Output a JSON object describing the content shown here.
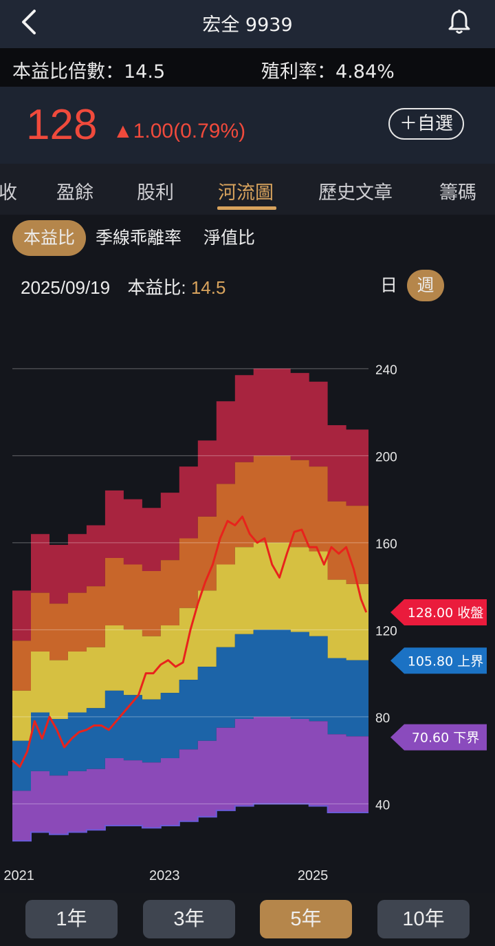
{
  "header": {
    "title": "宏全 9939"
  },
  "info": {
    "pe_label": "本益比倍數：14.5",
    "yield_label": "殖利率：4.84%"
  },
  "quote": {
    "price": "128",
    "change": "▲1.00(0.79%)",
    "watch_label": "＋自選"
  },
  "tabs": [
    "收",
    "盈餘",
    "股利",
    "河流圖",
    "歷史文章",
    "籌碼"
  ],
  "active_tab": "河流圖",
  "metric_tabs": [
    "本益比",
    "季線乖離率",
    "淨值比"
  ],
  "active_metric": "本益比",
  "detail": {
    "date": "2025/09/19",
    "label": "本益比:",
    "value": "14.5"
  },
  "period": {
    "day": "日",
    "week": "週",
    "active": "週"
  },
  "range_buttons": [
    "1年",
    "3年",
    "5年",
    "10年"
  ],
  "active_range": "5年",
  "colors": {
    "accent": "#b5864b",
    "price_red": "#f04a3c",
    "band1": "#8b4ab8",
    "band2": "#1c64a8",
    "band3": "#d6c041",
    "band4": "#c8662a",
    "band5": "#a8243f"
  },
  "chart_data": {
    "type": "area",
    "title": "",
    "yticks": [
      240,
      200,
      160,
      120,
      80,
      40
    ],
    "ylim": [
      30,
      245
    ],
    "xlim": [
      2020.95,
      2025.75
    ],
    "xticks": [
      {
        "x": 2021,
        "label": "2021"
      },
      {
        "x": 2023,
        "label": "2023"
      },
      {
        "x": 2025,
        "label": "2025"
      }
    ],
    "quarters": [
      2020.95,
      2021.2,
      2021.45,
      2021.7,
      2021.95,
      2022.2,
      2022.45,
      2022.7,
      2022.95,
      2023.2,
      2023.45,
      2023.7,
      2023.95,
      2024.2,
      2024.45,
      2024.7,
      2024.95,
      2025.2,
      2025.45,
      2025.75
    ],
    "bands": [
      {
        "name": "band1",
        "color": "#8b4ab8",
        "values": [
          23,
          27,
          26,
          27,
          28,
          30,
          30,
          29,
          30,
          32,
          34,
          37,
          39,
          40,
          40,
          40,
          39,
          36,
          36,
          36
        ]
      },
      {
        "name": "band2",
        "color": "#1c64a8",
        "values": [
          46,
          55,
          53,
          55,
          56,
          61,
          60,
          59,
          61,
          65,
          69,
          75,
          79,
          80,
          80,
          79,
          78,
          72,
          71,
          71
        ]
      },
      {
        "name": "band3",
        "color": "#d6c041",
        "values": [
          69,
          82,
          79,
          82,
          84,
          92,
          90,
          88,
          91,
          97,
          103,
          112,
          118,
          120,
          120,
          119,
          117,
          107,
          106,
          106
        ]
      },
      {
        "name": "band4",
        "color": "#c8662a",
        "values": [
          92,
          110,
          106,
          110,
          112,
          122,
          120,
          117,
          122,
          130,
          138,
          150,
          158,
          160,
          160,
          158,
          156,
          143,
          141,
          141
        ]
      },
      {
        "name": "band5",
        "color": "#a8243f",
        "values": [
          115,
          137,
          132,
          137,
          140,
          153,
          150,
          147,
          152,
          162,
          172,
          187,
          197,
          200,
          200,
          198,
          195,
          179,
          177,
          177
        ]
      },
      {
        "name": "band6",
        "color": "#a8243f",
        "values": [
          138,
          164,
          159,
          164,
          168,
          184,
          180,
          176,
          183,
          195,
          207,
          225,
          237,
          240,
          240,
          238,
          234,
          214,
          212,
          212
        ]
      }
    ],
    "price_line": {
      "x": [
        2020.95,
        2021.05,
        2021.15,
        2021.25,
        2021.35,
        2021.45,
        2021.55,
        2021.65,
        2021.75,
        2021.85,
        2021.95,
        2022.05,
        2022.15,
        2022.25,
        2022.35,
        2022.45,
        2022.55,
        2022.65,
        2022.75,
        2022.85,
        2022.95,
        2023.05,
        2023.15,
        2023.25,
        2023.35,
        2023.45,
        2023.55,
        2023.65,
        2023.75,
        2023.85,
        2023.95,
        2024.05,
        2024.15,
        2024.25,
        2024.35,
        2024.45,
        2024.55,
        2024.65,
        2024.75,
        2024.85,
        2024.95,
        2025.05,
        2025.15,
        2025.25,
        2025.35,
        2025.45,
        2025.55,
        2025.65,
        2025.72
      ],
      "values": [
        60,
        57,
        64,
        78,
        70,
        80,
        74,
        66,
        70,
        73,
        74,
        76,
        76,
        74,
        78,
        82,
        86,
        90,
        100,
        100,
        104,
        106,
        103,
        105,
        120,
        132,
        142,
        150,
        162,
        170,
        168,
        172,
        164,
        160,
        162,
        150,
        144,
        155,
        165,
        166,
        158,
        158,
        150,
        158,
        155,
        158,
        148,
        134,
        128
      ]
    },
    "markers": [
      {
        "label": "128.00 收盤",
        "value": 128.0,
        "color": "#ea1b3c"
      },
      {
        "label": "105.80 上界",
        "value": 105.8,
        "color": "#1b72c4"
      },
      {
        "label": "70.60 下界",
        "value": 70.6,
        "color": "#8a4bbd"
      }
    ]
  }
}
